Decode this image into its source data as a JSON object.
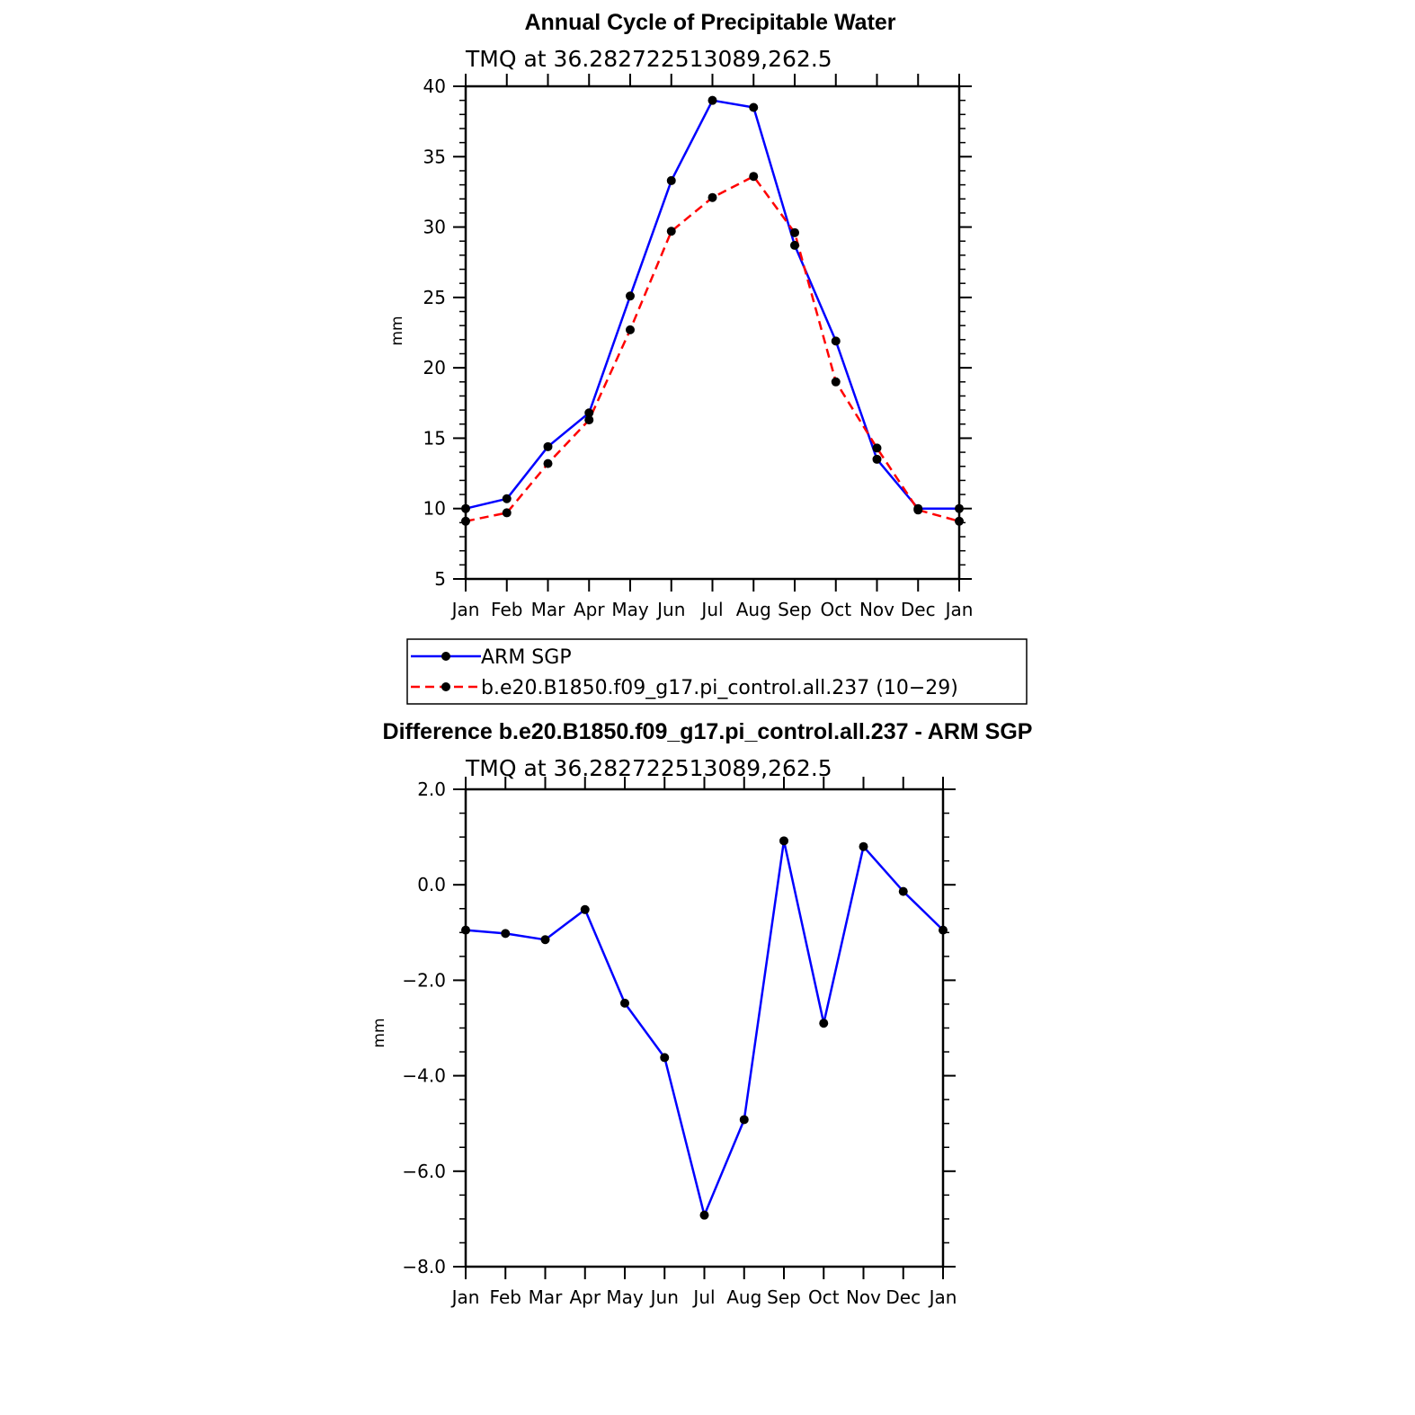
{
  "chart_data": [
    {
      "type": "line",
      "title": "Annual Cycle of Precipitable Water",
      "subtitle": "TMQ at 36.282722513089,262.5",
      "xlabel": "",
      "ylabel": "mm",
      "categories": [
        "Jan",
        "Feb",
        "Mar",
        "Apr",
        "May",
        "Jun",
        "Jul",
        "Aug",
        "Sep",
        "Oct",
        "Nov",
        "Dec",
        "Jan"
      ],
      "ylim": [
        5,
        40
      ],
      "yticks": [
        5,
        10,
        15,
        20,
        25,
        30,
        35,
        40
      ],
      "ytick_labels": [
        "5",
        "10",
        "15",
        "20",
        "25",
        "30",
        "35",
        "40"
      ],
      "grid": false,
      "series": [
        {
          "name": "ARM SGP",
          "color": "#0000ff",
          "dash": "solid",
          "values": [
            10.0,
            10.7,
            14.4,
            16.8,
            25.1,
            33.3,
            39.0,
            38.5,
            28.7,
            21.9,
            13.5,
            10.0,
            10.0
          ]
        },
        {
          "name": "b.e20.B1850.f09_g17.pi_control.all.237 (10−29)",
          "color": "#ff0000",
          "dash": "dashed",
          "values": [
            9.1,
            9.7,
            13.2,
            16.3,
            22.7,
            29.7,
            32.1,
            33.6,
            29.6,
            19.0,
            14.3,
            9.9,
            9.1
          ]
        }
      ],
      "legend": {
        "placement": "bottom",
        "entries": [
          "ARM SGP",
          "b.e20.B1850.f09_g17.pi_control.all.237 (10−29)"
        ]
      }
    },
    {
      "type": "line",
      "title": "Difference b.e20.B1850.f09_g17.pi_control.all.237 - ARM SGP",
      "subtitle": "TMQ at 36.282722513089,262.5",
      "xlabel": "",
      "ylabel": "mm",
      "categories": [
        "Jan",
        "Feb",
        "Mar",
        "Apr",
        "May",
        "Jun",
        "Jul",
        "Aug",
        "Sep",
        "Oct",
        "Nov",
        "Dec",
        "Jan"
      ],
      "ylim": [
        -8,
        2
      ],
      "yticks": [
        -8,
        -6,
        -4,
        -2,
        0,
        2
      ],
      "ytick_labels": [
        "−8.0",
        "−6.0",
        "−4.0",
        "−2.0",
        "0.0",
        "2.0"
      ],
      "grid": false,
      "series": [
        {
          "name": "Difference",
          "color": "#0000ff",
          "dash": "solid",
          "values": [
            -0.95,
            -1.02,
            -1.15,
            -0.52,
            -2.48,
            -3.62,
            -6.92,
            -4.92,
            0.92,
            -2.9,
            0.8,
            -0.14,
            -0.95
          ]
        }
      ]
    }
  ]
}
